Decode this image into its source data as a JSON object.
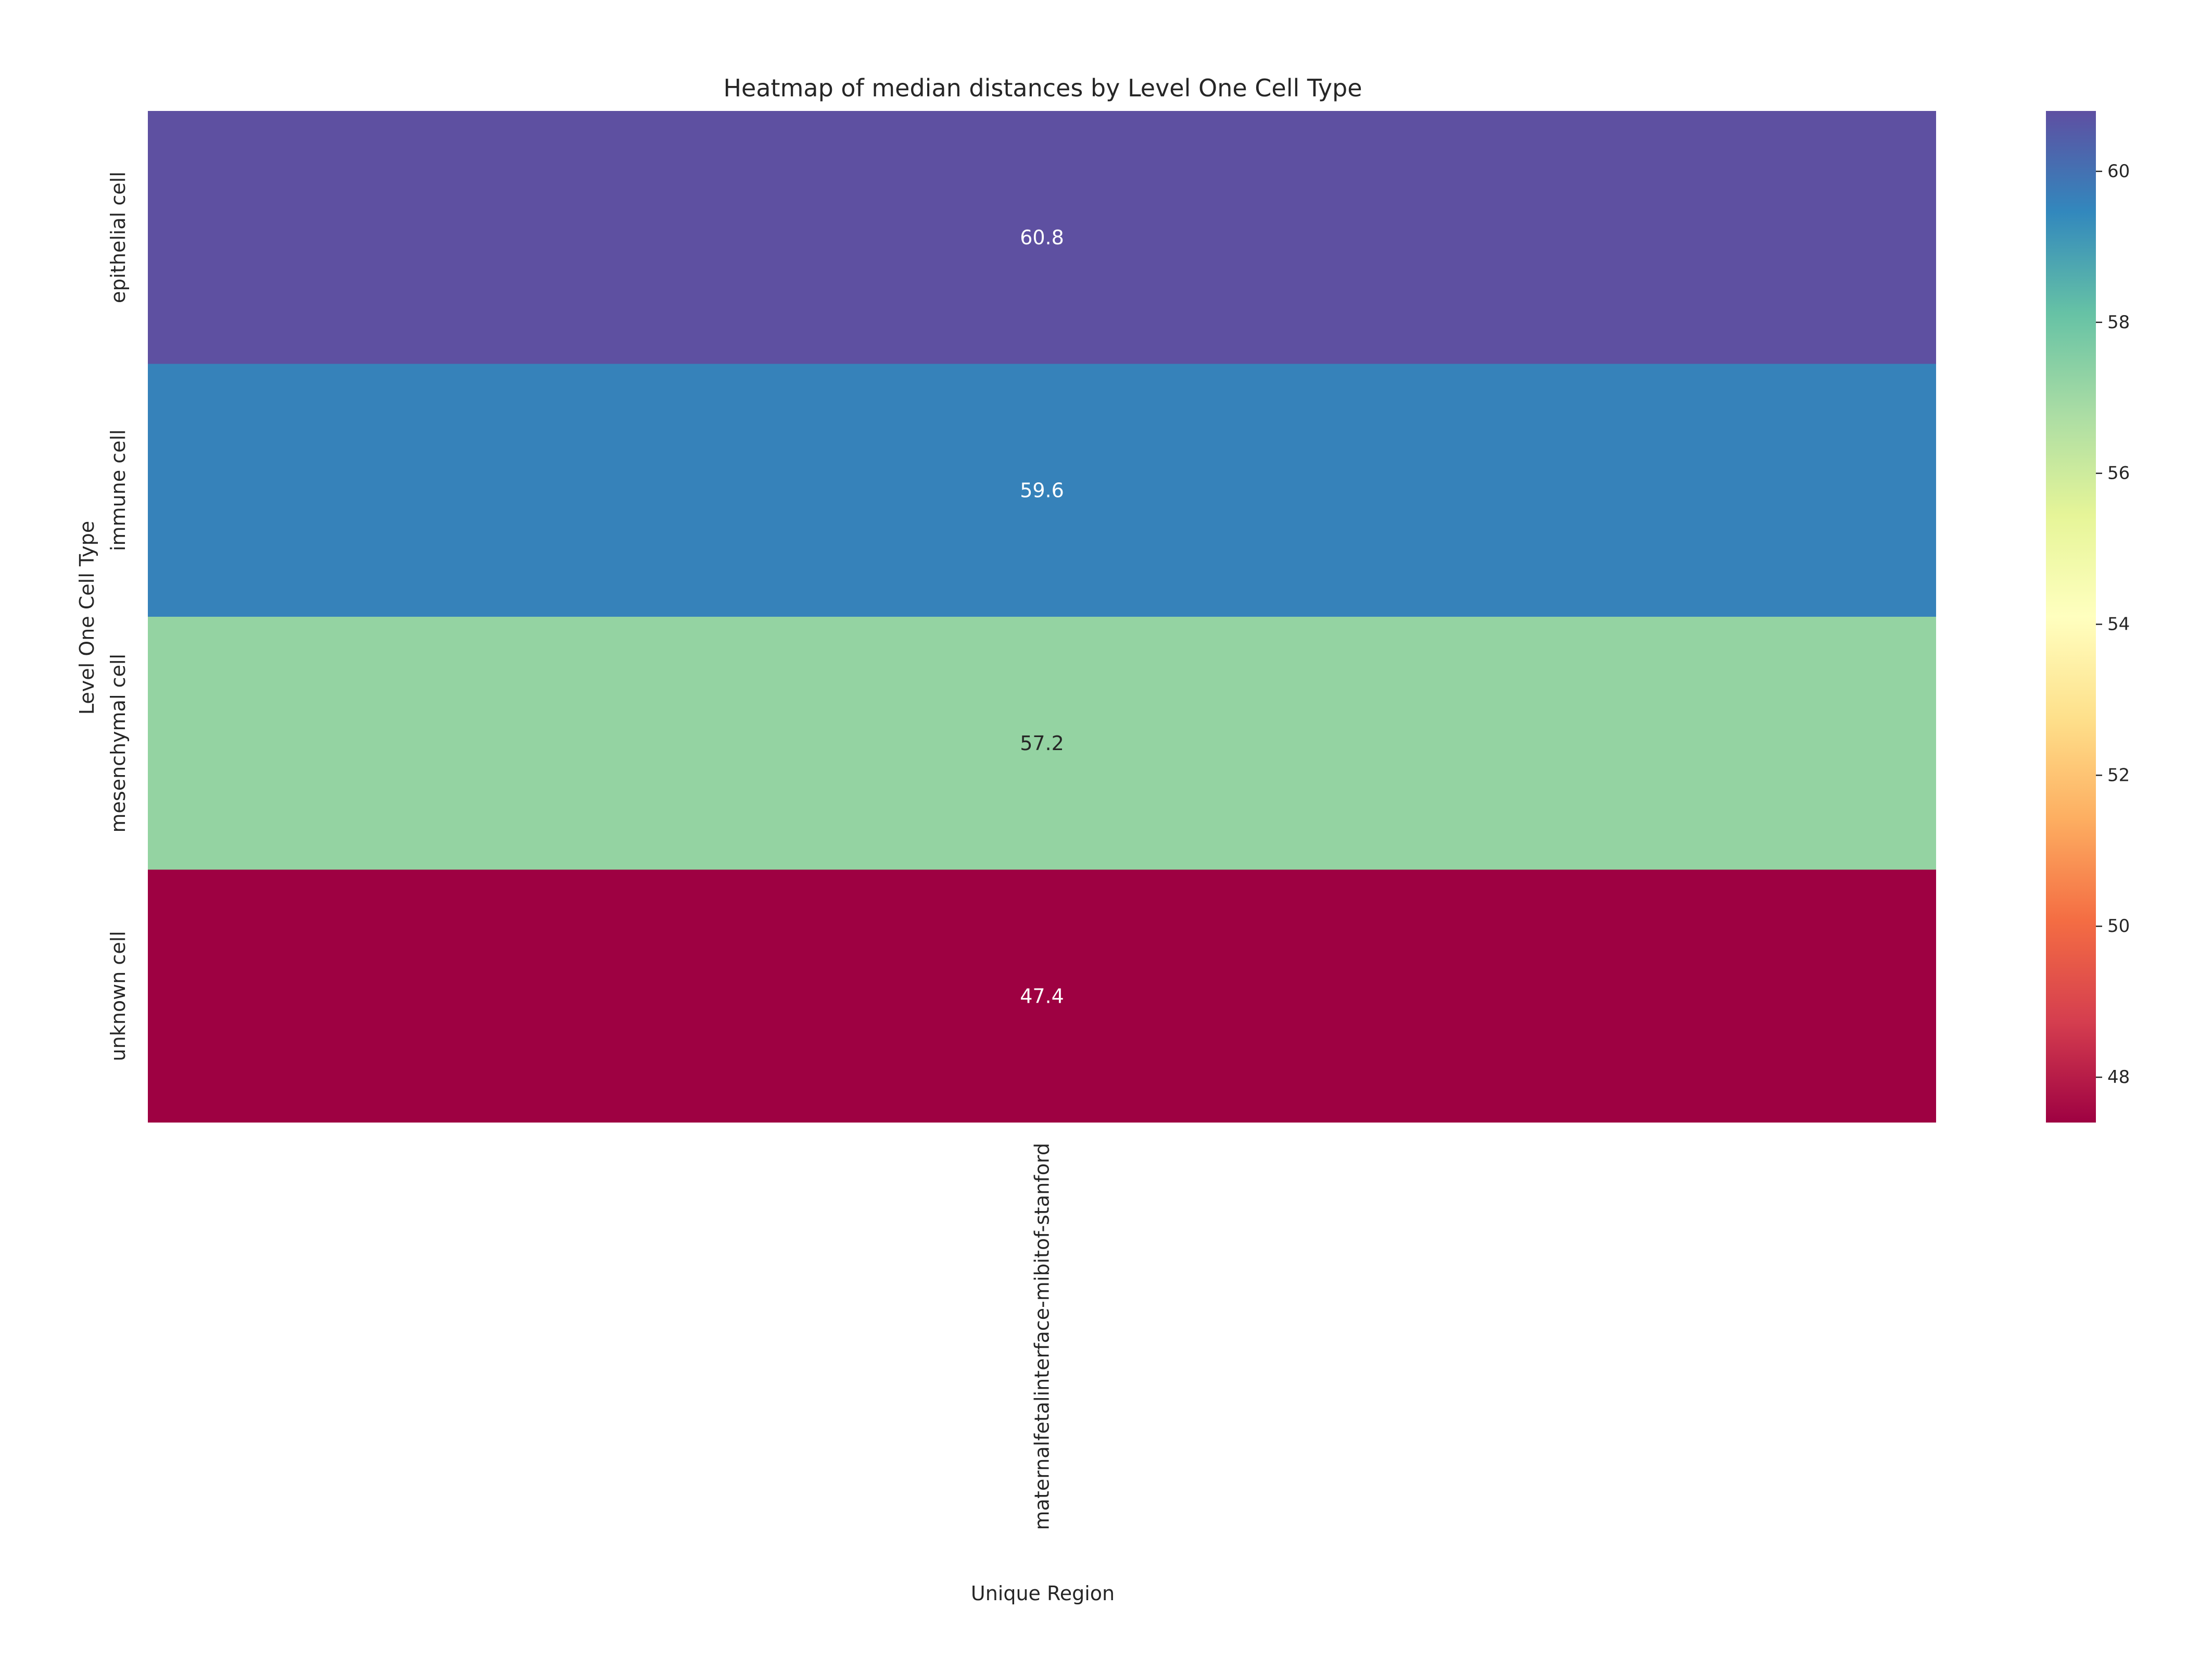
{
  "chart_data": {
    "type": "heatmap",
    "title": "Heatmap of median distances by Level One Cell Type",
    "xlabel": "Unique Region",
    "ylabel": "Level One Cell Type",
    "x_categories": [
      "maternalfetalinterface-mibitof-stanford"
    ],
    "y_categories": [
      "epithelial cell",
      "immune cell",
      "mesenchymal cell",
      "unknown cell"
    ],
    "values": [
      [
        60.8
      ],
      [
        59.6
      ],
      [
        57.2
      ],
      [
        47.4
      ]
    ],
    "annotations": [
      [
        "60.8"
      ],
      [
        "59.6"
      ],
      [
        "57.2"
      ],
      [
        "47.4"
      ]
    ],
    "colorbar": {
      "colormap": "Spectral",
      "range": [
        47.4,
        60.8
      ],
      "ticks": [
        48,
        50,
        52,
        54,
        56,
        58,
        60
      ],
      "tick_labels": [
        "48",
        "50",
        "52",
        "54",
        "56",
        "58",
        "60"
      ]
    },
    "cell_colors": [
      "#5e50a1",
      "#3682ba",
      "#94d3a2",
      "#9e0142"
    ],
    "annotation_text_colors": [
      "#ffffff",
      "#ffffff",
      "#262626",
      "#ffffff"
    ],
    "grid": false
  }
}
